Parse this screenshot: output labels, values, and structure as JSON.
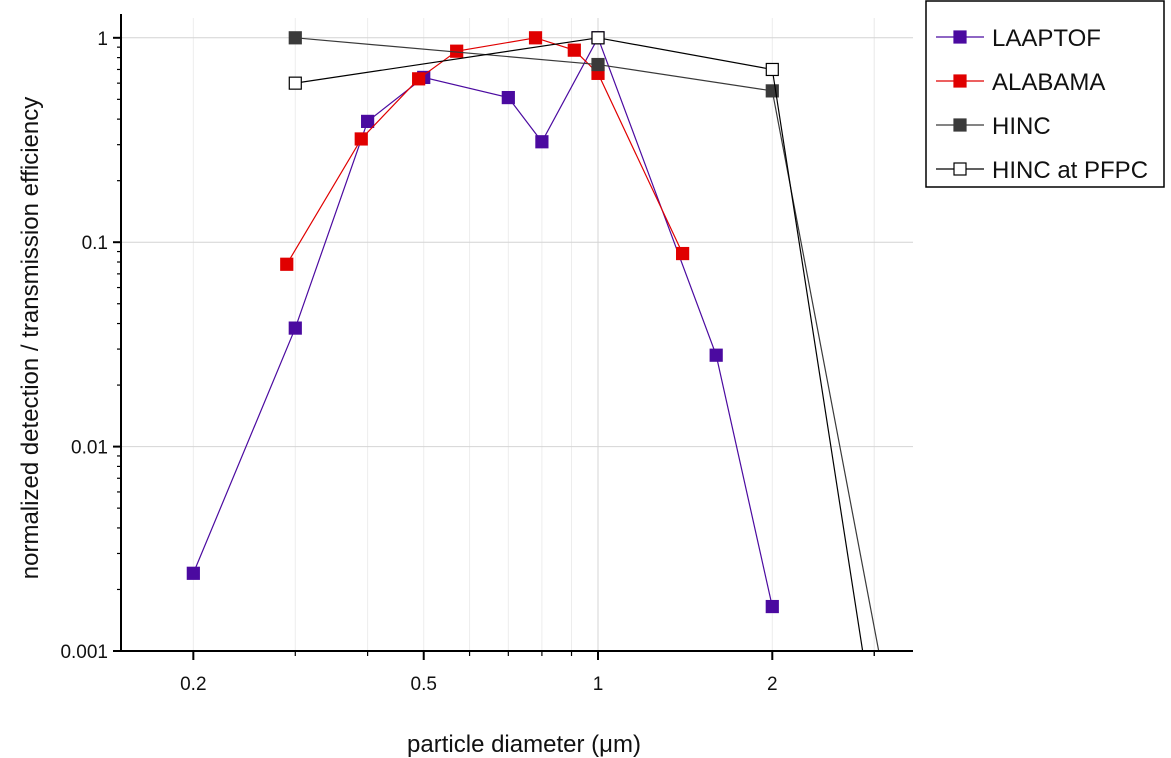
{
  "chart_data": {
    "type": "line",
    "xscale": "log",
    "yscale": "log",
    "xlim": [
      0.15,
      3.5
    ],
    "ylim": [
      0.001,
      1.25
    ],
    "xlabel": "particle diameter (μm)",
    "ylabel": "normalized detection / transmission efficiency",
    "xticks": [
      0.2,
      0.5,
      1,
      2
    ],
    "xtick_labels": [
      "0.2",
      "0.5",
      "1",
      "2"
    ],
    "yticks": [
      0.001,
      0.01,
      0.1,
      1
    ],
    "ytick_labels": [
      "0.001",
      "0.01",
      "0.1",
      "1"
    ],
    "grid": true,
    "legend_position": "top-right outside",
    "series": [
      {
        "name": "LAAPTOF",
        "color": "#4b0aa0",
        "marker": "filled-square",
        "x": [
          0.2,
          0.3,
          0.4,
          0.5,
          0.7,
          0.8,
          1.0,
          1.6,
          2.0
        ],
        "y": [
          0.0024,
          0.038,
          0.39,
          0.64,
          0.51,
          0.31,
          1.0,
          0.028,
          0.00165
        ]
      },
      {
        "name": "ALABAMA",
        "color": "#e00000",
        "marker": "filled-square",
        "x": [
          0.29,
          0.39,
          0.49,
          0.57,
          0.78,
          0.91,
          1.0,
          1.4
        ],
        "y": [
          0.078,
          0.32,
          0.63,
          0.86,
          1.0,
          0.87,
          0.67,
          0.088
        ]
      },
      {
        "name": "HINC",
        "color": "#3a3a3a",
        "marker": "filled-square",
        "x": [
          0.3,
          1.0,
          2.0,
          3.1
        ],
        "y": [
          1.0,
          0.74,
          0.55,
          0.0008
        ]
      },
      {
        "name": "HINC at PFPC",
        "color": "#000000",
        "marker": "open-square",
        "x": [
          0.3,
          1.0,
          2.0,
          2.9
        ],
        "y": [
          0.6,
          1.0,
          0.7,
          0.0008
        ]
      }
    ]
  }
}
